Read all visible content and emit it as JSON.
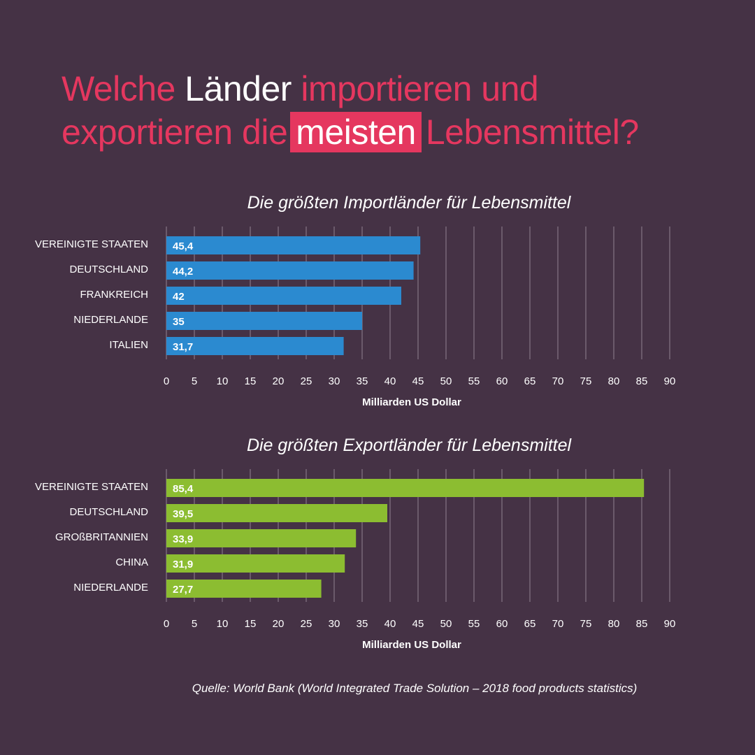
{
  "headline": {
    "part1": "Welche ",
    "part2": "Länder",
    "part3": " importieren und",
    "part4": "exportieren die",
    "part5": "meisten",
    "part6": "Lebensmittel?"
  },
  "chart_data": [
    {
      "type": "bar",
      "orientation": "horizontal",
      "title": "Die größten Importländer für Lebensmittel",
      "categories": [
        "VEREINIGTE STAATEN",
        "DEUTSCHLAND",
        "FRANKREICH",
        "NIEDERLANDE",
        "ITALIEN"
      ],
      "values": [
        45.4,
        44.2,
        42,
        35,
        31.7
      ],
      "value_labels": [
        "45,4",
        "44,2",
        "42",
        "35",
        "31,7"
      ],
      "xlabel": "Milliarden US Dollar",
      "xlim": [
        0,
        90
      ],
      "ticks": [
        0,
        5,
        10,
        15,
        20,
        25,
        30,
        35,
        40,
        45,
        50,
        55,
        60,
        65,
        70,
        75,
        80,
        85,
        90
      ],
      "grid": true,
      "color": "#2b8ad0"
    },
    {
      "type": "bar",
      "orientation": "horizontal",
      "title": "Die größten Exportländer für Lebensmittel",
      "categories": [
        "VEREINIGTE STAATEN",
        "DEUTSCHLAND",
        "GROßBRITANNIEN",
        "CHINA",
        "NIEDERLANDE"
      ],
      "values": [
        85.4,
        39.5,
        33.9,
        31.9,
        27.7
      ],
      "value_labels": [
        "85,4",
        "39,5",
        "33,9",
        "31,9",
        "27,7"
      ],
      "xlabel": "Milliarden US Dollar",
      "xlim": [
        0,
        90
      ],
      "ticks": [
        0,
        5,
        10,
        15,
        20,
        25,
        30,
        35,
        40,
        45,
        50,
        55,
        60,
        65,
        70,
        75,
        80,
        85,
        90
      ],
      "grid": true,
      "color": "#8cbd31"
    }
  ],
  "source": "Quelle: World Bank (World Integrated Trade Solution – 2018 food products statistics)"
}
